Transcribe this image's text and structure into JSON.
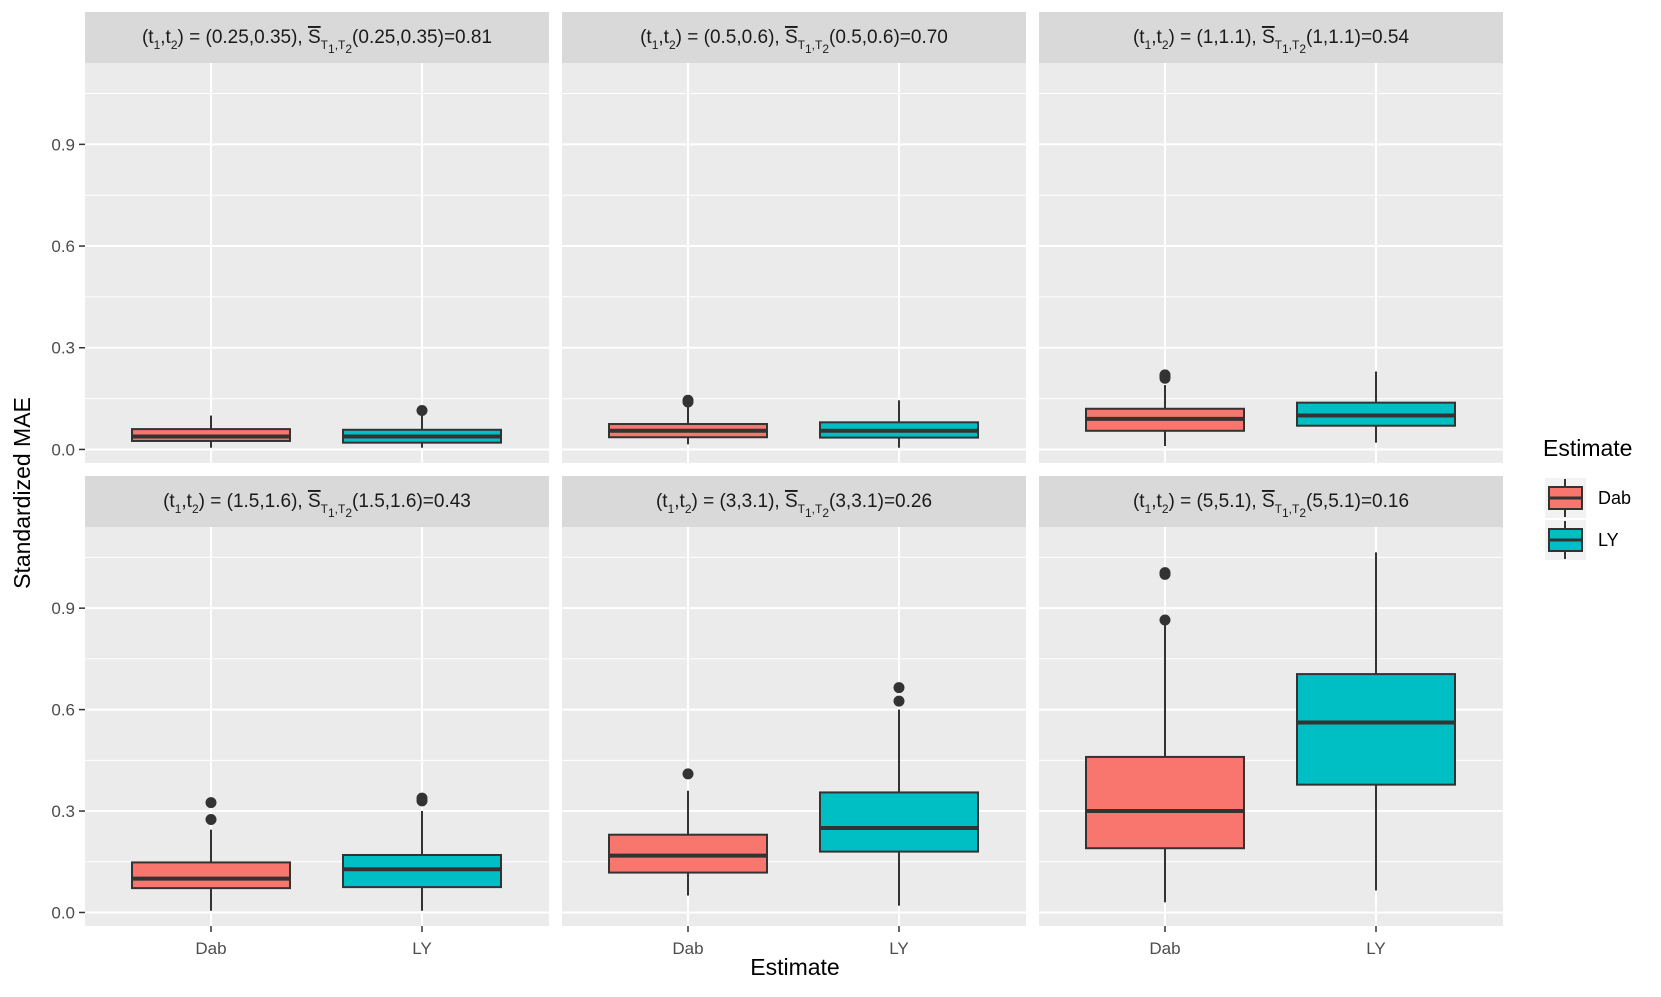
{
  "chart_data": {
    "type": "boxplot",
    "xlabel": "Estimate",
    "ylabel": "Standardized MAE",
    "ylim": [
      -0.04,
      1.14
    ],
    "yticks": [
      0.0,
      0.3,
      0.6,
      0.9
    ],
    "ytick_labels": [
      "0.0",
      "0.3",
      "0.6",
      "0.9"
    ],
    "categories": [
      "Dab",
      "LY"
    ],
    "legend": {
      "title": "Estimate",
      "position": "right",
      "entries": [
        {
          "label": "Dab",
          "color": "#F8766D"
        },
        {
          "label": "LY",
          "color": "#00BFC4"
        }
      ]
    },
    "panels": [
      {
        "strip": {
          "t_label": "(t",
          "t_sub1": "1",
          "t_mid": ",t",
          "t_sub2": "2",
          "t_value": ") = (0.25,0.35),  ",
          "s_letter": "S",
          "s_sub": "T",
          "s_sub_sub1": "1",
          "s_sub_mid": ",T",
          "s_sub_sub2": "2",
          "s_value": "(0.25,0.35)=0.81"
        },
        "boxes": [
          {
            "category": "Dab",
            "whisker_low": 0.005,
            "q1": 0.025,
            "median": 0.038,
            "q3": 0.06,
            "whisker_high": 0.1,
            "outliers": []
          },
          {
            "category": "LY",
            "whisker_low": 0.005,
            "q1": 0.02,
            "median": 0.038,
            "q3": 0.058,
            "whisker_high": 0.1,
            "outliers": [
              0.115
            ]
          }
        ]
      },
      {
        "strip": {
          "t_label": "(t",
          "t_sub1": "1",
          "t_mid": ",t",
          "t_sub2": "2",
          "t_value": ") = (0.5,0.6),  ",
          "s_letter": "S",
          "s_sub": "T",
          "s_sub_sub1": "1",
          "s_sub_mid": ",T",
          "s_sub_sub2": "2",
          "s_value": "(0.5,0.6)=0.70"
        },
        "boxes": [
          {
            "category": "Dab",
            "whisker_low": 0.015,
            "q1": 0.036,
            "median": 0.055,
            "q3": 0.075,
            "whisker_high": 0.125,
            "outliers": [
              0.145,
              0.14
            ]
          },
          {
            "category": "LY",
            "whisker_low": 0.005,
            "q1": 0.035,
            "median": 0.055,
            "q3": 0.08,
            "whisker_high": 0.145,
            "outliers": []
          }
        ]
      },
      {
        "strip": {
          "t_label": "(t",
          "t_sub1": "1",
          "t_mid": ",t",
          "t_sub2": "2",
          "t_value": ") = (1,1.1),  ",
          "s_letter": "S",
          "s_sub": "T",
          "s_sub_sub1": "1",
          "s_sub_mid": ",T",
          "s_sub_sub2": "2",
          "s_value": "(1,1.1)=0.54"
        },
        "boxes": [
          {
            "category": "Dab",
            "whisker_low": 0.01,
            "q1": 0.055,
            "median": 0.09,
            "q3": 0.12,
            "whisker_high": 0.19,
            "outliers": [
              0.21,
              0.215,
              0.22
            ]
          },
          {
            "category": "LY",
            "whisker_low": 0.02,
            "q1": 0.07,
            "median": 0.1,
            "q3": 0.138,
            "whisker_high": 0.23,
            "outliers": []
          }
        ]
      },
      {
        "strip": {
          "t_label": "(t",
          "t_sub1": "1",
          "t_mid": ",t",
          "t_sub2": "2",
          "t_value": ") = (1.5,1.6),  ",
          "s_letter": "S",
          "s_sub": "T",
          "s_sub_sub1": "1",
          "s_sub_mid": ",T",
          "s_sub_sub2": "2",
          "s_value": "(1.5,1.6)=0.43"
        },
        "boxes": [
          {
            "category": "Dab",
            "whisker_low": 0.005,
            "q1": 0.072,
            "median": 0.1,
            "q3": 0.148,
            "whisker_high": 0.245,
            "outliers": [
              0.275,
              0.325
            ]
          },
          {
            "category": "LY",
            "whisker_low": 0.005,
            "q1": 0.075,
            "median": 0.128,
            "q3": 0.17,
            "whisker_high": 0.3,
            "outliers": [
              0.33,
              0.338
            ]
          }
        ]
      },
      {
        "strip": {
          "t_label": "(t",
          "t_sub1": "1",
          "t_mid": ",t",
          "t_sub2": "2",
          "t_value": ") = (3,3.1),  ",
          "s_letter": "S",
          "s_sub": "T",
          "s_sub_sub1": "1",
          "s_sub_mid": ",T",
          "s_sub_sub2": "2",
          "s_value": "(3,3.1)=0.26"
        },
        "boxes": [
          {
            "category": "Dab",
            "whisker_low": 0.05,
            "q1": 0.118,
            "median": 0.168,
            "q3": 0.23,
            "whisker_high": 0.36,
            "outliers": [
              0.41
            ]
          },
          {
            "category": "LY",
            "whisker_low": 0.02,
            "q1": 0.18,
            "median": 0.25,
            "q3": 0.355,
            "whisker_high": 0.6,
            "outliers": [
              0.625,
              0.665
            ]
          }
        ]
      },
      {
        "strip": {
          "t_label": "(t",
          "t_sub1": "1",
          "t_mid": ",t",
          "t_sub2": "2",
          "t_value": ") = (5,5.1),  ",
          "s_letter": "S",
          "s_sub": "T",
          "s_sub_sub1": "1",
          "s_sub_mid": ",T",
          "s_sub_sub2": "2",
          "s_value": "(5,5.1)=0.16"
        },
        "boxes": [
          {
            "category": "Dab",
            "whisker_low": 0.03,
            "q1": 0.19,
            "median": 0.3,
            "q3": 0.46,
            "whisker_high": 0.87,
            "outliers": [
              0.865,
              1.0,
              1.005
            ]
          },
          {
            "category": "LY",
            "whisker_low": 0.065,
            "q1": 0.378,
            "median": 0.562,
            "q3": 0.705,
            "whisker_high": 1.065,
            "outliers": []
          }
        ]
      }
    ]
  }
}
